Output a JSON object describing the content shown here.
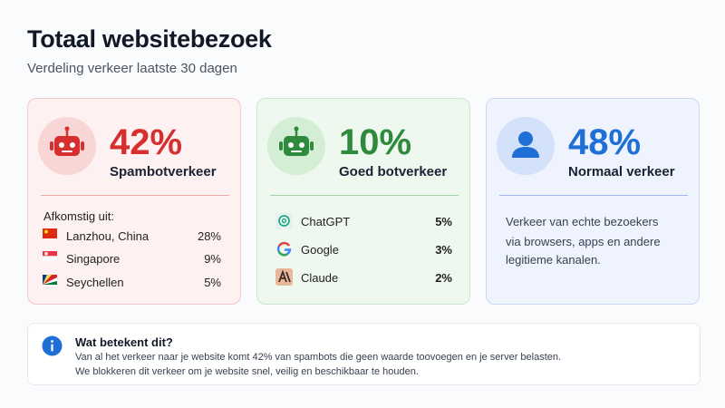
{
  "header": {
    "title": "Totaal websitebezoek",
    "subtitle": "Verdeling verkeer laatste 30 dagen"
  },
  "cards": [
    {
      "percentage": "42%",
      "label": "Spambotverkeer",
      "list_title": "Afkomstig uit:",
      "items": [
        {
          "name": "Lanzhou, China",
          "value": "28%"
        },
        {
          "name": "Singapore",
          "value": "9%"
        },
        {
          "name": "Seychellen",
          "value": "5%"
        }
      ]
    },
    {
      "percentage": "10%",
      "label": "Goed botverkeer",
      "items": [
        {
          "name": "ChatGPT",
          "value": "5%"
        },
        {
          "name": "Google",
          "value": "3%"
        },
        {
          "name": "Claude",
          "value": "2%"
        }
      ]
    },
    {
      "percentage": "48%",
      "label": "Normaal verkeer",
      "description": [
        "Verkeer van echte bezoekers",
        "via browsers, apps en andere",
        "legitieme kanalen."
      ]
    }
  ],
  "info": {
    "title": "Wat betekent dit?",
    "lines": [
      "Van al het verkeer naar je website komt 42% van spambots die geen waarde toovoegen en je server belasten.",
      "We blokkeren dit verkeer om je website snel, veilig en beschikbaar te houden."
    ]
  }
}
